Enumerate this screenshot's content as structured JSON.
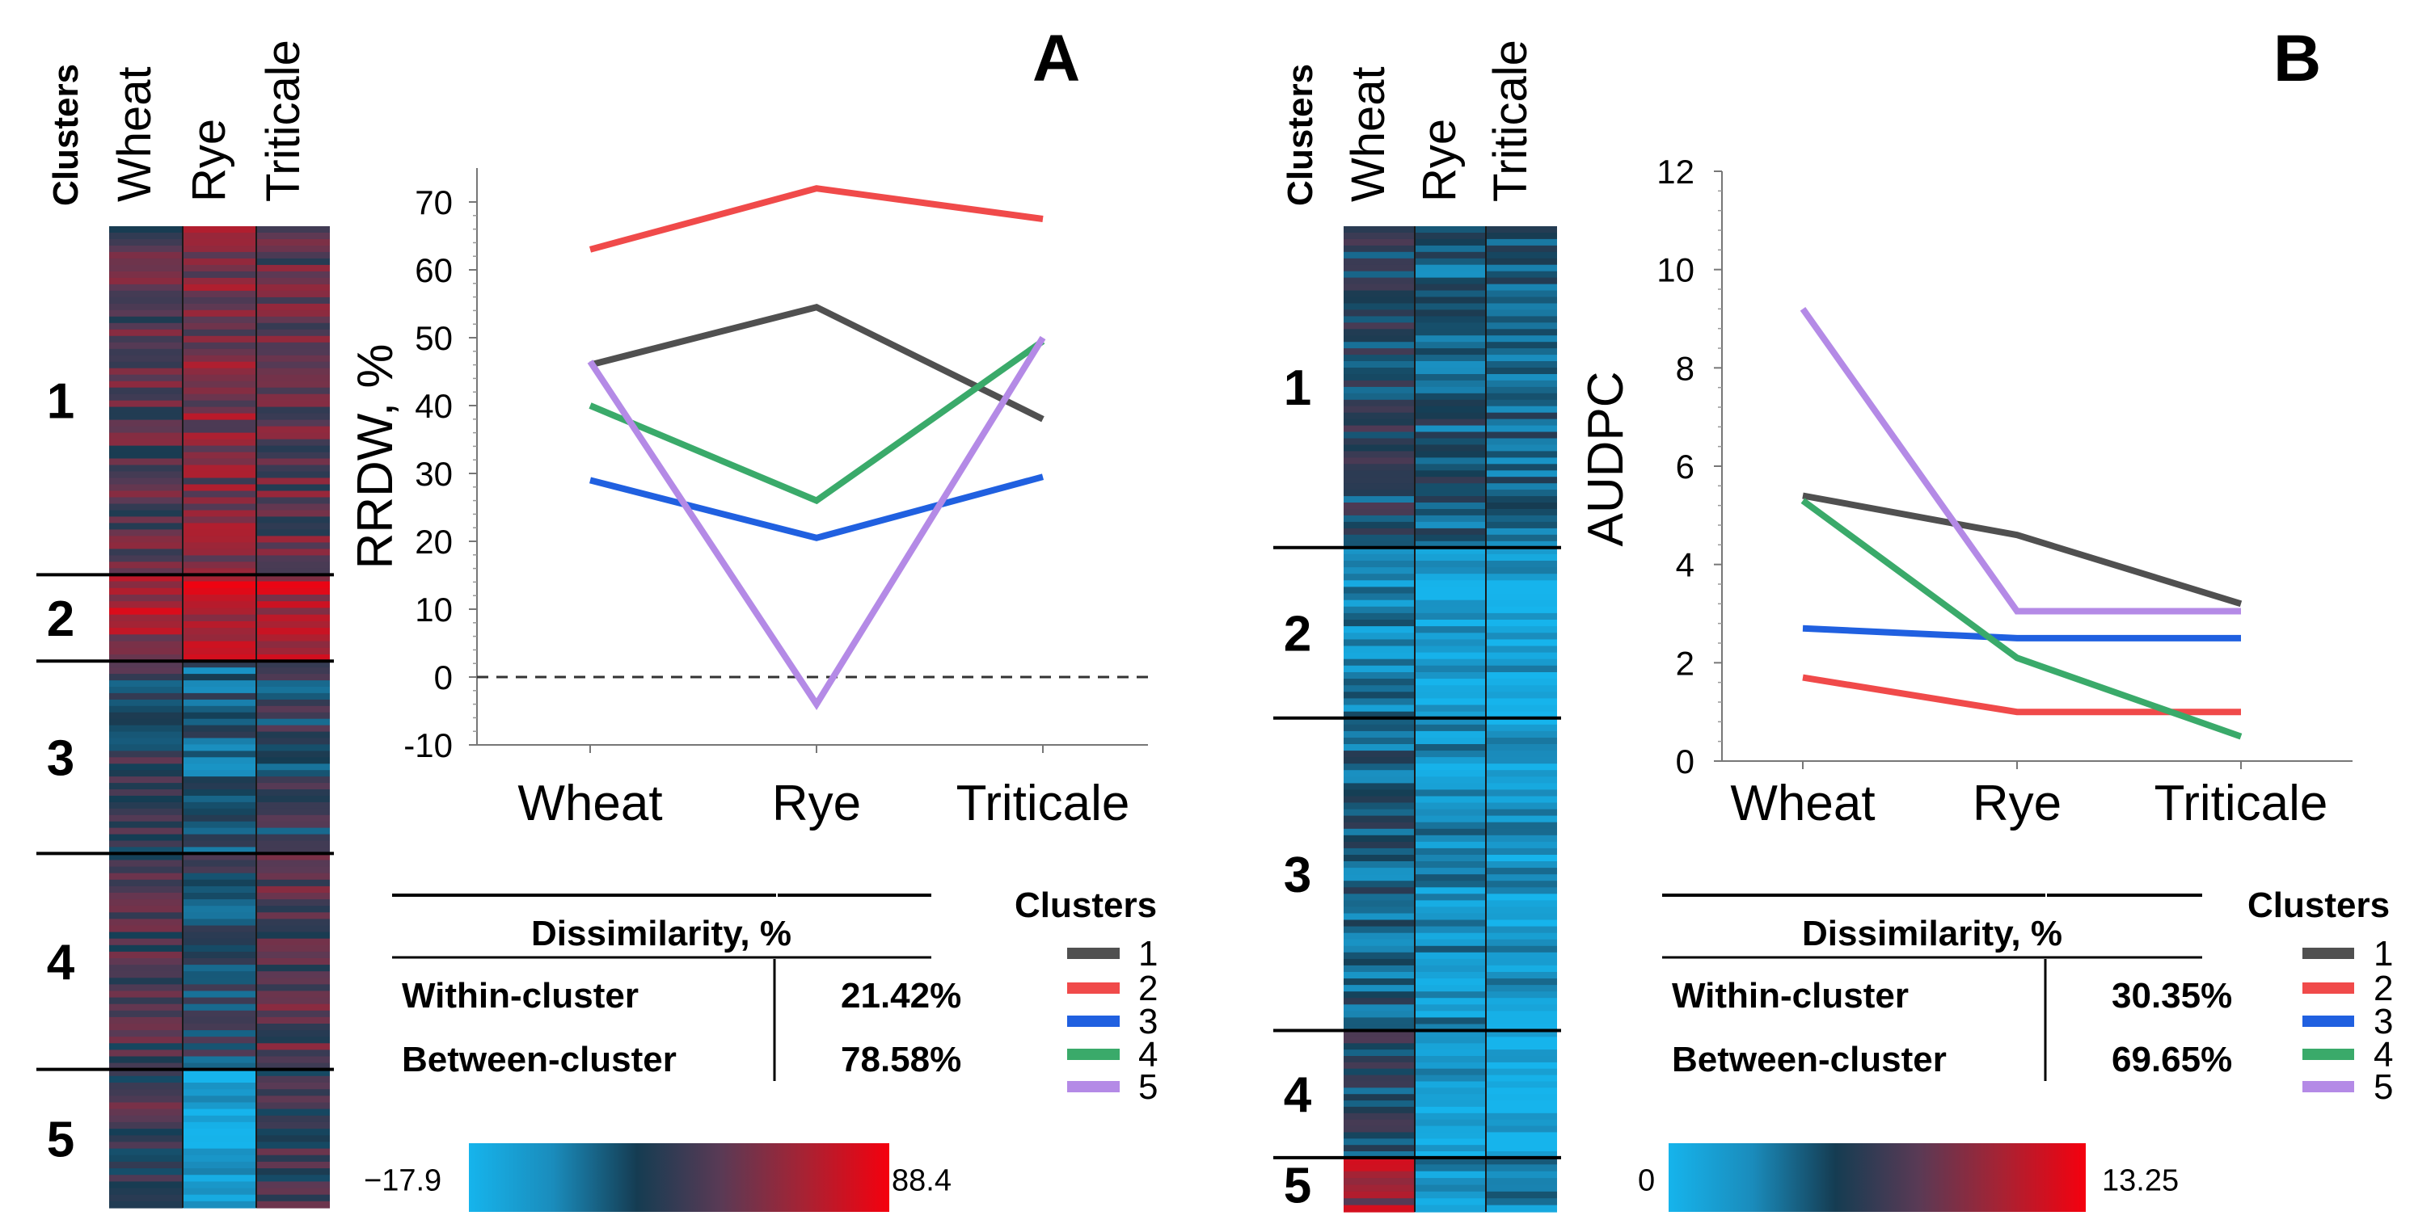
{
  "panels": [
    {
      "id": "A",
      "letter": "A",
      "heatmap": {
        "header": "Clusters",
        "columns": [
          "Wheat",
          "Rye",
          "Triticale"
        ],
        "cluster_labels": [
          "1",
          "2",
          "3",
          "4",
          "5"
        ],
        "cluster_row_share": [
          0.355,
          0.088,
          0.196,
          0.22,
          0.141
        ],
        "cluster_means": [
          [
            0.58,
            0.68,
            0.6
          ],
          [
            0.78,
            0.82,
            0.8
          ],
          [
            0.45,
            0.33,
            0.43
          ],
          [
            0.52,
            0.42,
            0.58
          ],
          [
            0.52,
            0.06,
            0.52
          ]
        ],
        "scale": {
          "min_label": "−17.9",
          "max_label": "88.4",
          "min": -17.9,
          "max": 88.4
        }
      },
      "chart_data": {
        "type": "line",
        "categories": [
          "Wheat",
          "Rye",
          "Triticale"
        ],
        "ylabel": "RRDW, %",
        "ylim": [
          -10,
          75
        ],
        "yticks": [
          -10,
          0,
          10,
          20,
          30,
          40,
          50,
          60,
          70
        ],
        "reference_line": 0,
        "series": [
          {
            "name": "1",
            "color": "#505050",
            "values": [
              46,
              54.5,
              38
            ]
          },
          {
            "name": "2",
            "color": "#f04a4a",
            "values": [
              63,
              72,
              67.5
            ]
          },
          {
            "name": "3",
            "color": "#2060e0",
            "values": [
              29,
              20.5,
              29.5
            ]
          },
          {
            "name": "4",
            "color": "#3aaa6a",
            "values": [
              40,
              26,
              49.5
            ]
          },
          {
            "name": "5",
            "color": "#b48ae6",
            "values": [
              46.5,
              -4,
              50
            ]
          }
        ]
      },
      "dissimilarity": {
        "header": "Dissimilarity, %",
        "rows": [
          {
            "label": "Within-cluster",
            "value": "21.42%"
          },
          {
            "label": "Between-cluster",
            "value": "78.58%"
          }
        ]
      },
      "legend": {
        "title": "Clusters"
      }
    },
    {
      "id": "B",
      "letter": "B",
      "heatmap": {
        "header": "Clusters",
        "columns": [
          "Wheat",
          "Rye",
          "Triticale"
        ],
        "cluster_labels": [
          "1",
          "2",
          "3",
          "4",
          "5"
        ],
        "cluster_row_share": [
          0.326,
          0.173,
          0.317,
          0.129,
          0.055
        ],
        "cluster_means": [
          [
            0.4,
            0.33,
            0.32
          ],
          [
            0.2,
            0.08,
            0.08
          ],
          [
            0.32,
            0.18,
            0.14
          ],
          [
            0.42,
            0.1,
            0.05
          ],
          [
            0.75,
            0.18,
            0.22
          ]
        ],
        "scale": {
          "min_label": "0",
          "max_label": "13.25",
          "min": 0,
          "max": 13.25
        }
      },
      "chart_data": {
        "type": "line",
        "categories": [
          "Wheat",
          "Rye",
          "Triticale"
        ],
        "ylabel": "AUDPC",
        "ylim": [
          0,
          12
        ],
        "yticks": [
          0,
          2,
          4,
          6,
          8,
          10,
          12
        ],
        "series": [
          {
            "name": "1",
            "color": "#505050",
            "values": [
              5.4,
              4.6,
              3.2
            ]
          },
          {
            "name": "2",
            "color": "#f04a4a",
            "values": [
              1.7,
              1.0,
              1.0
            ]
          },
          {
            "name": "3",
            "color": "#2060e0",
            "values": [
              2.7,
              2.5,
              2.5
            ]
          },
          {
            "name": "4",
            "color": "#3aaa6a",
            "values": [
              5.3,
              2.1,
              0.5
            ]
          },
          {
            "name": "5",
            "color": "#b48ae6",
            "values": [
              9.2,
              3.05,
              3.05
            ]
          }
        ]
      },
      "dissimilarity": {
        "header": "Dissimilarity, %",
        "rows": [
          {
            "label": "Within-cluster",
            "value": "30.35%"
          },
          {
            "label": "Between-cluster",
            "value": "69.65%"
          }
        ]
      },
      "legend": {
        "title": "Clusters"
      }
    }
  ]
}
